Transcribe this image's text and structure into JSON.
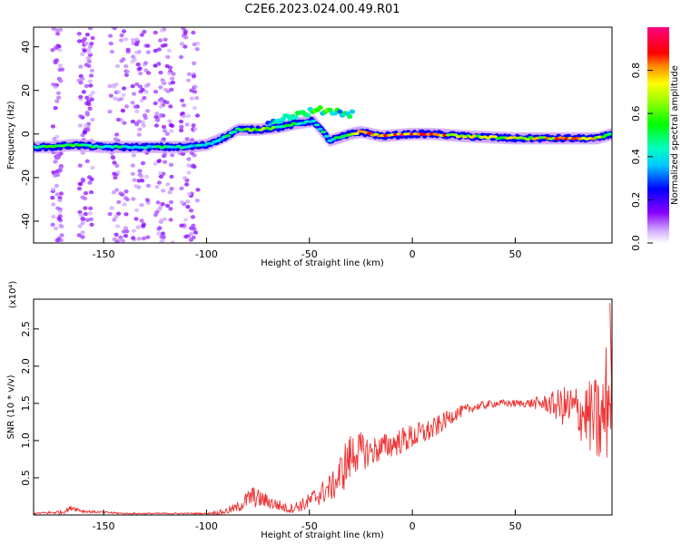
{
  "figure": {
    "title": "C2E6.2023.024.00.49.R01"
  },
  "chart_data": [
    {
      "type": "heatmap",
      "title": "",
      "xlabel": "Height of straight line (km)",
      "ylabel": "Frequency (Hz)",
      "xlim": [
        -184,
        97
      ],
      "ylim": [
        -50,
        49
      ],
      "xticks": [
        "-150",
        "-100",
        "-50",
        "0",
        "50"
      ],
      "yticks": [
        "40",
        "20",
        "0",
        "-20",
        "-40"
      ],
      "colorbar": {
        "label": "Normalized spectral amplitude",
        "range": [
          0,
          1
        ],
        "ticks": [
          "0.0",
          "0.2",
          "0.4",
          "0.6",
          "0.8"
        ],
        "colormap": [
          "#ff00ff",
          "#ff0000",
          "#ffff00",
          "#00ff00",
          "#00ffff",
          "#0000ff",
          "#8800ff",
          "#ffffff"
        ]
      },
      "ridge": [
        {
          "x": -184,
          "f": -6,
          "a": 0.55
        },
        {
          "x": -175,
          "f": -6,
          "a": 0.6
        },
        {
          "x": -165,
          "f": -5,
          "a": 0.6
        },
        {
          "x": -150,
          "f": -6,
          "a": 0.55
        },
        {
          "x": -130,
          "f": -6,
          "a": 0.5
        },
        {
          "x": -110,
          "f": -6,
          "a": 0.5
        },
        {
          "x": -100,
          "f": -5,
          "a": 0.45
        },
        {
          "x": -90,
          "f": -1,
          "a": 0.5
        },
        {
          "x": -85,
          "f": 2,
          "a": 0.55
        },
        {
          "x": -75,
          "f": 2,
          "a": 0.7
        },
        {
          "x": -65,
          "f": 3,
          "a": 0.6
        },
        {
          "x": -55,
          "f": 5,
          "a": 0.5
        },
        {
          "x": -48,
          "f": 6,
          "a": 0.45
        },
        {
          "x": -40,
          "f": -3,
          "a": 0.5
        },
        {
          "x": -30,
          "f": 0,
          "a": 0.6
        },
        {
          "x": -25,
          "f": 1,
          "a": 0.9
        },
        {
          "x": -15,
          "f": -1,
          "a": 0.95
        },
        {
          "x": 0,
          "f": 0,
          "a": 1.0
        },
        {
          "x": 10,
          "f": 0,
          "a": 0.95
        },
        {
          "x": 25,
          "f": -1,
          "a": 0.75
        },
        {
          "x": 50,
          "f": -2,
          "a": 0.75
        },
        {
          "x": 70,
          "f": -2,
          "a": 0.85
        },
        {
          "x": 90,
          "f": -2,
          "a": 0.8
        },
        {
          "x": 97,
          "f": 0,
          "a": 0.5
        }
      ],
      "branch_upper": [
        {
          "x": -70,
          "f": 5,
          "a": 0.45
        },
        {
          "x": -60,
          "f": 8,
          "a": 0.45
        },
        {
          "x": -50,
          "f": 10,
          "a": 0.55
        },
        {
          "x": -42,
          "f": 11,
          "a": 0.6
        },
        {
          "x": -35,
          "f": 10,
          "a": 0.5
        },
        {
          "x": -28,
          "f": 9,
          "a": 0.45
        }
      ]
    },
    {
      "type": "line",
      "title": "",
      "xlabel": "Height of straight line (km)",
      "ylabel": "SNR (10 * v/v)",
      "scale_note": "(x10⁴)",
      "xlim": [
        -184,
        97
      ],
      "ylim": [
        0,
        2.9
      ],
      "xticks": [
        "-150",
        "-100",
        "-50",
        "0",
        "50"
      ],
      "yticks": [
        "0.5",
        "1.0",
        "1.5",
        "2.0",
        "2.5"
      ],
      "color": "#ee3333",
      "envelope": [
        {
          "x": -184,
          "mean": 0.02,
          "noise": 0.01
        },
        {
          "x": -170,
          "mean": 0.04,
          "noise": 0.03
        },
        {
          "x": -165,
          "mean": 0.1,
          "noise": 0.04
        },
        {
          "x": -160,
          "mean": 0.05,
          "noise": 0.02
        },
        {
          "x": -140,
          "mean": 0.02,
          "noise": 0.01
        },
        {
          "x": -100,
          "mean": 0.02,
          "noise": 0.01
        },
        {
          "x": -92,
          "mean": 0.04,
          "noise": 0.04
        },
        {
          "x": -85,
          "mean": 0.1,
          "noise": 0.07
        },
        {
          "x": -78,
          "mean": 0.25,
          "noise": 0.15
        },
        {
          "x": -70,
          "mean": 0.18,
          "noise": 0.1
        },
        {
          "x": -60,
          "mean": 0.08,
          "noise": 0.06
        },
        {
          "x": -52,
          "mean": 0.15,
          "noise": 0.1
        },
        {
          "x": -45,
          "mean": 0.28,
          "noise": 0.15
        },
        {
          "x": -38,
          "mean": 0.4,
          "noise": 0.2
        },
        {
          "x": -32,
          "mean": 0.7,
          "noise": 0.35
        },
        {
          "x": -28,
          "mean": 0.85,
          "noise": 0.3
        },
        {
          "x": -20,
          "mean": 0.85,
          "noise": 0.2
        },
        {
          "x": -10,
          "mean": 0.95,
          "noise": 0.18
        },
        {
          "x": 0,
          "mean": 1.05,
          "noise": 0.18
        },
        {
          "x": 10,
          "mean": 1.15,
          "noise": 0.15
        },
        {
          "x": 20,
          "mean": 1.35,
          "noise": 0.1
        },
        {
          "x": 30,
          "mean": 1.45,
          "noise": 0.06
        },
        {
          "x": 40,
          "mean": 1.5,
          "noise": 0.05
        },
        {
          "x": 55,
          "mean": 1.5,
          "noise": 0.05
        },
        {
          "x": 65,
          "mean": 1.5,
          "noise": 0.12
        },
        {
          "x": 75,
          "mean": 1.45,
          "noise": 0.3
        },
        {
          "x": 85,
          "mean": 1.35,
          "noise": 0.45
        },
        {
          "x": 92,
          "mean": 1.2,
          "noise": 0.7
        },
        {
          "x": 95,
          "mean": 1.6,
          "noise": 0.9
        },
        {
          "x": 97,
          "mean": 1.5,
          "noise": 0.3
        }
      ]
    }
  ]
}
